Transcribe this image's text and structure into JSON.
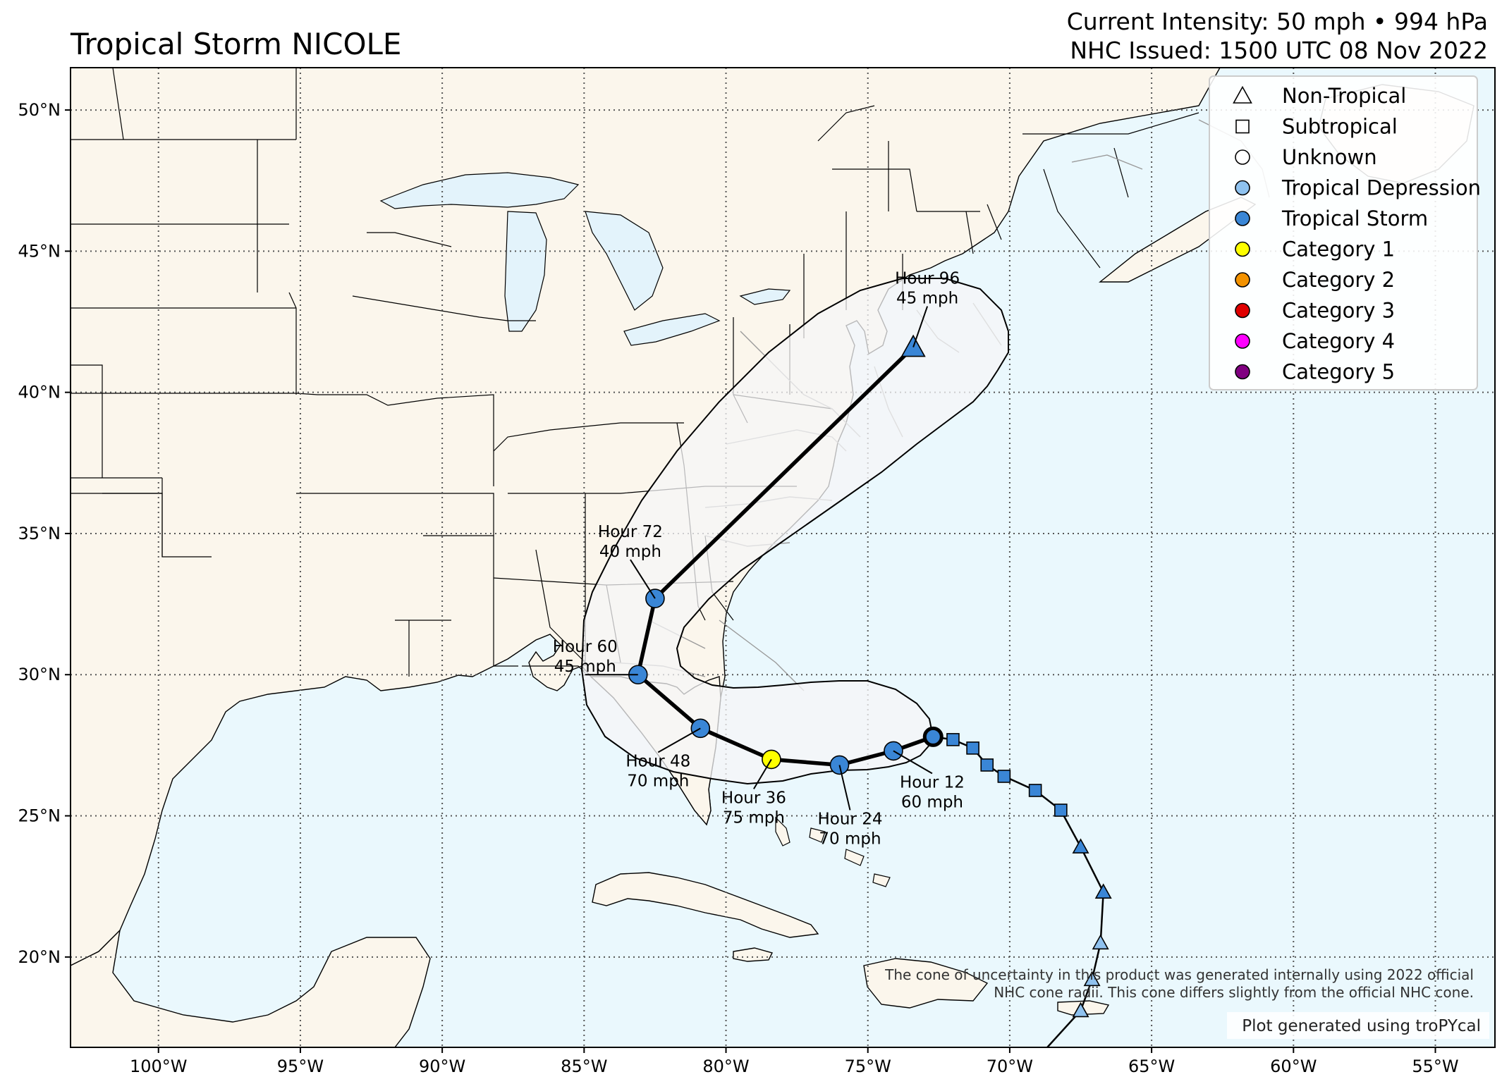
{
  "title": "Tropical Storm NICOLE",
  "info": {
    "intensity": "Current Intensity: 50 mph • 994 hPa",
    "issued": "NHC Issued: 1500 UTC 08 Nov 2022"
  },
  "axes": {
    "lon_labels": [
      "100°W",
      "95°W",
      "90°W",
      "85°W",
      "80°W",
      "75°W",
      "70°W",
      "65°W",
      "60°W",
      "55°W"
    ],
    "lat_labels": [
      "50°N",
      "45°N",
      "40°N",
      "35°N",
      "30°N",
      "25°N",
      "20°N"
    ],
    "lon_range": [
      -103.1,
      -52.9
    ],
    "lat_range": [
      16.8,
      51.5
    ]
  },
  "legend": [
    {
      "label": "Non-Tropical",
      "shape": "triangle",
      "color": "#ffffff"
    },
    {
      "label": "Subtropical",
      "shape": "square",
      "color": "#ffffff"
    },
    {
      "label": "Unknown",
      "shape": "circle",
      "color": "#ffffff"
    },
    {
      "label": "Tropical Depression",
      "shape": "circle",
      "color": "#8fc2ef"
    },
    {
      "label": "Tropical Storm",
      "shape": "circle",
      "color": "#3a86d6"
    },
    {
      "label": "Category 1",
      "shape": "circle",
      "color": "#ffff00"
    },
    {
      "label": "Category 2",
      "shape": "circle",
      "color": "#f39200"
    },
    {
      "label": "Category 3",
      "shape": "circle",
      "color": "#e00000"
    },
    {
      "label": "Category 4",
      "shape": "circle",
      "color": "#ff00ff"
    },
    {
      "label": "Category 5",
      "shape": "circle",
      "color": "#800080"
    }
  ],
  "forecast_points": [
    {
      "hour": "Hour 12",
      "wind": "60 mph",
      "lon": -74.1,
      "lat": 27.3,
      "category": "Tropical Storm",
      "color": "#3a86d6"
    },
    {
      "hour": "Hour 24",
      "wind": "70 mph",
      "lon": -76.0,
      "lat": 26.8,
      "category": "Tropical Storm",
      "color": "#3a86d6"
    },
    {
      "hour": "Hour 36",
      "wind": "75 mph",
      "lon": -78.4,
      "lat": 27.0,
      "category": "Category 1",
      "color": "#ffff00"
    },
    {
      "hour": "Hour 48",
      "wind": "70 mph",
      "lon": -80.9,
      "lat": 28.1,
      "category": "Tropical Storm",
      "color": "#3a86d6"
    },
    {
      "hour": "Hour 60",
      "wind": "45 mph",
      "lon": -83.1,
      "lat": 30.0,
      "category": "Tropical Storm",
      "color": "#3a86d6"
    },
    {
      "hour": "Hour 72",
      "wind": "40 mph",
      "lon": -82.5,
      "lat": 32.7,
      "category": "Tropical Storm",
      "color": "#3a86d6"
    },
    {
      "hour": "Hour 96",
      "wind": "45 mph",
      "lon": -73.4,
      "lat": 41.6,
      "category": "Non-Tropical",
      "color": "#3a86d6"
    }
  ],
  "current_position": {
    "lon": -72.7,
    "lat": 27.8
  },
  "past_track": [
    {
      "lon": -72.0,
      "lat": 27.7,
      "type": "Subtropical",
      "color": "#3a86d6"
    },
    {
      "lon": -71.3,
      "lat": 27.4,
      "type": "Subtropical",
      "color": "#3a86d6"
    },
    {
      "lon": -70.8,
      "lat": 26.8,
      "type": "Subtropical",
      "color": "#3a86d6"
    },
    {
      "lon": -70.2,
      "lat": 26.4,
      "type": "Subtropical",
      "color": "#3a86d6"
    },
    {
      "lon": -69.1,
      "lat": 25.9,
      "type": "Subtropical",
      "color": "#3a86d6"
    },
    {
      "lon": -68.2,
      "lat": 25.2,
      "type": "Subtropical",
      "color": "#3a86d6"
    },
    {
      "lon": -67.5,
      "lat": 23.9,
      "type": "Non-Tropical",
      "color": "#3a86d6"
    },
    {
      "lon": -66.7,
      "lat": 22.3,
      "type": "Non-Tropical",
      "color": "#3a86d6"
    },
    {
      "lon": -66.8,
      "lat": 20.5,
      "type": "Non-Tropical",
      "color": "#8fc2ef"
    },
    {
      "lon": -67.1,
      "lat": 19.2,
      "type": "Non-Tropical",
      "color": "#8fc2ef"
    },
    {
      "lon": -67.5,
      "lat": 18.1,
      "type": "Non-Tropical",
      "color": "#8fc2ef"
    }
  ],
  "disclaimer": [
    "The cone of uncertainty in this product was generated internally using 2022 official",
    "NHC cone radii. This cone differs slightly from the official NHC cone."
  ],
  "credit": "Plot generated using troPYcal",
  "colors": {
    "land": "#fbf6ec",
    "ocean": "#eaf8fd",
    "lakes": "#e3f3fb",
    "cone": "#f5f6f7"
  }
}
